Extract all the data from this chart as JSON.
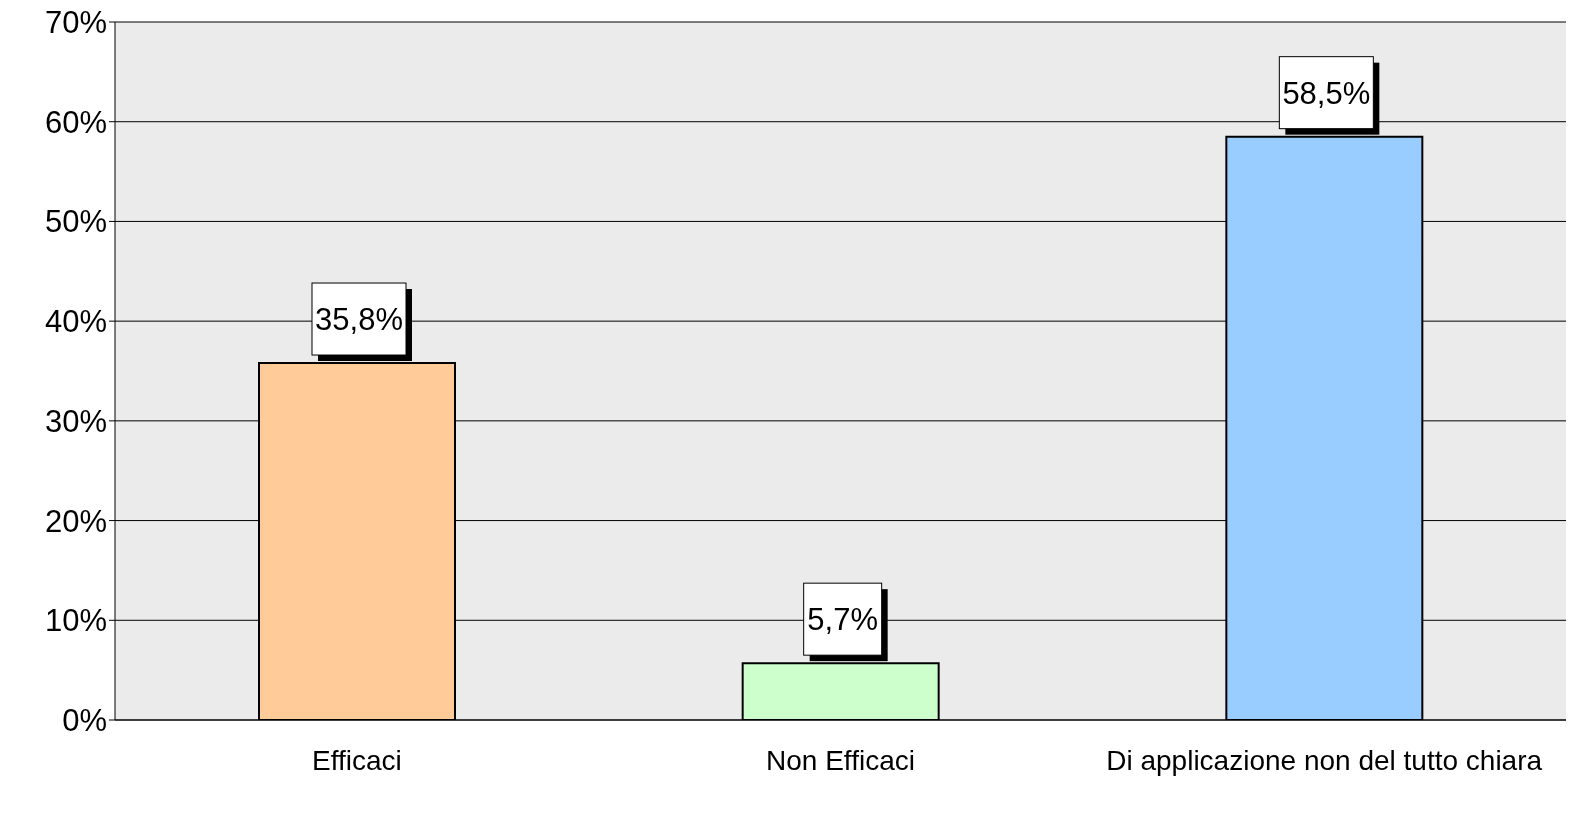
{
  "chart_data": {
    "type": "bar",
    "categories": [
      "Efficaci",
      "Non Efficaci",
      "Di applicazione non del tutto chiara"
    ],
    "values": [
      35.8,
      5.7,
      58.5
    ],
    "colors": [
      "#ffcc99",
      "#ccffcc",
      "#99ccff"
    ],
    "value_labels": [
      "35,8%",
      "5,7%",
      "58,5%"
    ],
    "ylim": [
      0,
      70
    ],
    "yticks": [
      {
        "value": 0,
        "label": "0%"
      },
      {
        "value": 10,
        "label": "10%"
      },
      {
        "value": 20,
        "label": "20%"
      },
      {
        "value": 30,
        "label": "30%"
      },
      {
        "value": 40,
        "label": "40%"
      },
      {
        "value": 50,
        "label": "50%"
      },
      {
        "value": 60,
        "label": "60%"
      },
      {
        "value": 70,
        "label": "70%"
      }
    ],
    "grid": "y",
    "legend": false
  }
}
